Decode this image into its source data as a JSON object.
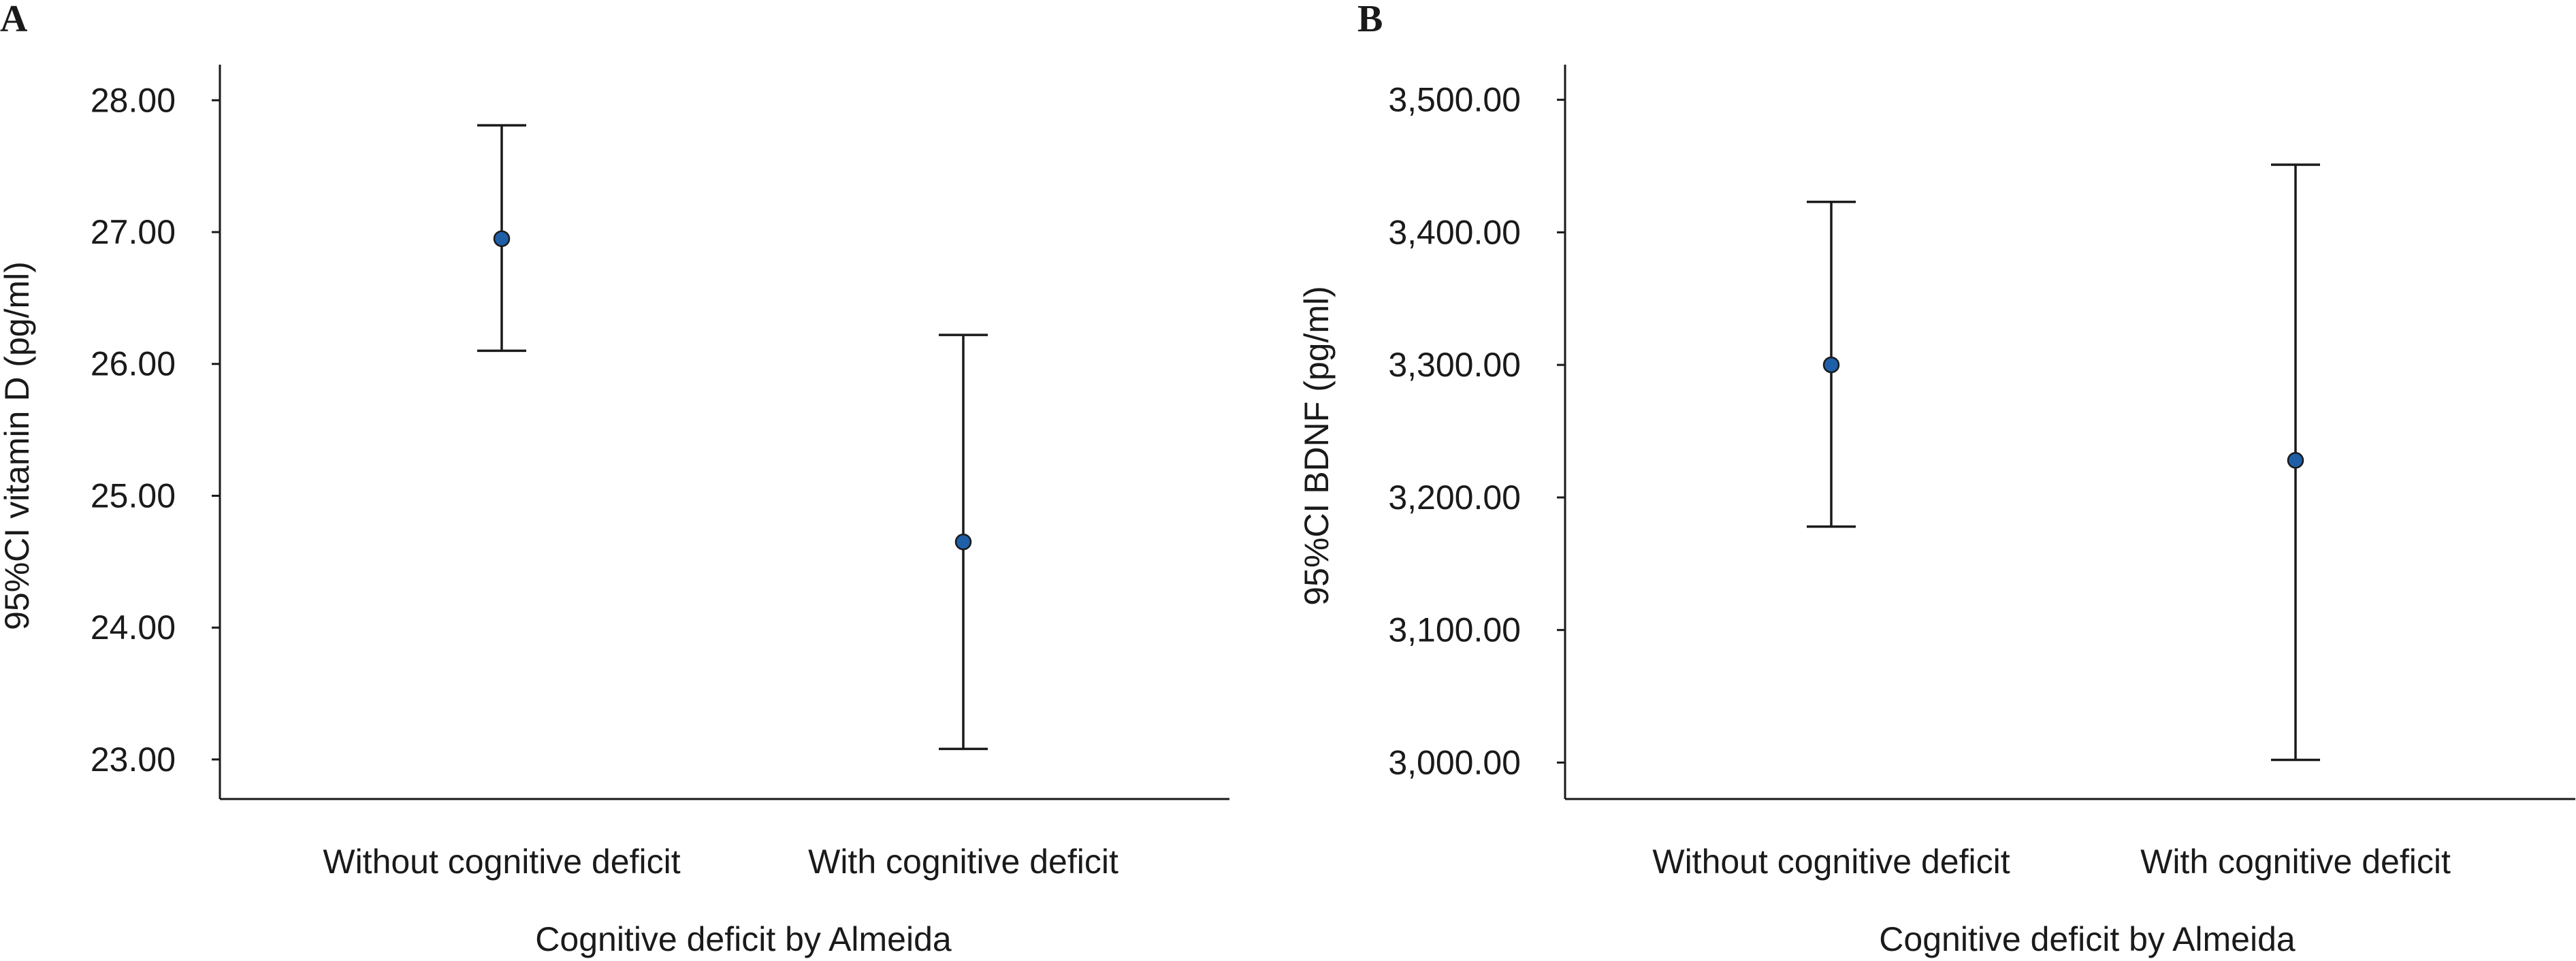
{
  "chart_data": [
    {
      "type": "scatter",
      "panel_label": "A",
      "categories": [
        "Without cognitive deficit",
        "With cognitive deficit"
      ],
      "series": [
        {
          "mean": [
            26.95,
            24.65
          ],
          "ci_lower": [
            26.1,
            23.08
          ],
          "ci_upper": [
            27.81,
            26.22
          ]
        }
      ],
      "title": "",
      "xlabel": "Cognitive deficit by Almeida",
      "ylabel": "95%CI vitamin D (pg/ml)",
      "ylim": [
        22.7,
        28.27
      ],
      "yticks": [
        23,
        24,
        25,
        26,
        27,
        28
      ],
      "ytick_labels": [
        "23.00",
        "24.00",
        "25.00",
        "26.00",
        "27.00",
        "28.00"
      ],
      "grid": false,
      "legend": "none",
      "point_color": "#1f5fa8"
    },
    {
      "type": "scatter",
      "panel_label": "B",
      "categories": [
        "Without cognitive deficit",
        "With cognitive deficit"
      ],
      "series": [
        {
          "mean": [
            3300,
            3228
          ],
          "ci_lower": [
            3178,
            3002
          ],
          "ci_upper": [
            3423,
            3451
          ]
        }
      ],
      "title": "",
      "xlabel": "Cognitive deficit by Almeida",
      "ylabel": "95%CI BDNF (pg/ml)",
      "ylim": [
        2972.5,
        3526.5
      ],
      "yticks": [
        3000,
        3100,
        3200,
        3300,
        3400,
        3500
      ],
      "ytick_labels": [
        "3,000.00",
        "3,100.00",
        "3,200.00",
        "3,300.00",
        "3,400.00",
        "3,500.00"
      ],
      "grid": false,
      "legend": "none",
      "point_color": "#1f5fa8"
    }
  ]
}
